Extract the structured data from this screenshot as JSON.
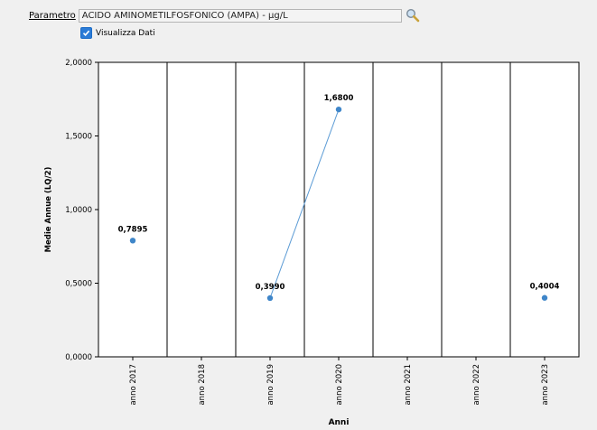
{
  "parameter": {
    "link_label": "Parametro",
    "value": "ACIDO AMINOMETILFOSFONICO (AMPA) - µg/L",
    "search_icon": "magnifier-icon"
  },
  "show_data": {
    "label": "Visualizza Dati",
    "checked": true
  },
  "chart_data": {
    "type": "line",
    "xlabel": "Anni",
    "ylabel": "Medie Annue (LQ/2)",
    "ylim": [
      0,
      2
    ],
    "yticks": [
      "0,0000",
      "0,5000",
      "1,0000",
      "1,5000",
      "2,0000"
    ],
    "categories": [
      "anno 2017",
      "anno 2018",
      "anno 2019",
      "anno 2020",
      "anno 2021",
      "anno 2022",
      "anno 2023"
    ],
    "values": [
      0.7895,
      null,
      0.399,
      1.68,
      null,
      null,
      0.4004
    ],
    "data_labels": [
      "0,7895",
      "",
      "0,3990",
      "1,6800",
      "",
      "",
      "0,4004"
    ],
    "line_color": "#5b9bd5",
    "point_color": "#3f86c9",
    "grid": true
  }
}
